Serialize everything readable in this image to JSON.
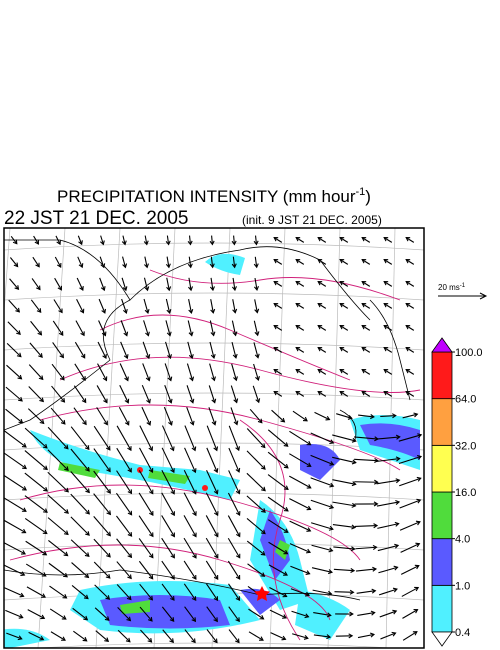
{
  "title": {
    "text": "PRECIPITATION INTENSITY (mm hour",
    "exponent": "-1",
    "close": ")"
  },
  "valid_time": "22 JST 21 DEC. 2005",
  "init_time": "(init. 9 JST 21 DEC. 2005)",
  "vector_legend": {
    "text": "20 ms",
    "exponent": "-1"
  },
  "colorbar": {
    "levels": [
      {
        "value": 0.4,
        "label": "0.4"
      },
      {
        "value": 1,
        "label": "1.0"
      },
      {
        "value": 4,
        "label": "4.0"
      },
      {
        "value": 16,
        "label": "16.0"
      },
      {
        "value": 32,
        "label": "32.0"
      },
      {
        "value": 64,
        "label": "64.0"
      },
      {
        "value": 100,
        "label": "100.0"
      }
    ],
    "colors": [
      "#50f0ff",
      "#5a5aff",
      "#50dc3c",
      "#ffff50",
      "#ffa040",
      "#ff1a1a"
    ],
    "over_color": "#c000ff",
    "under_color": "#ffffff"
  }
}
